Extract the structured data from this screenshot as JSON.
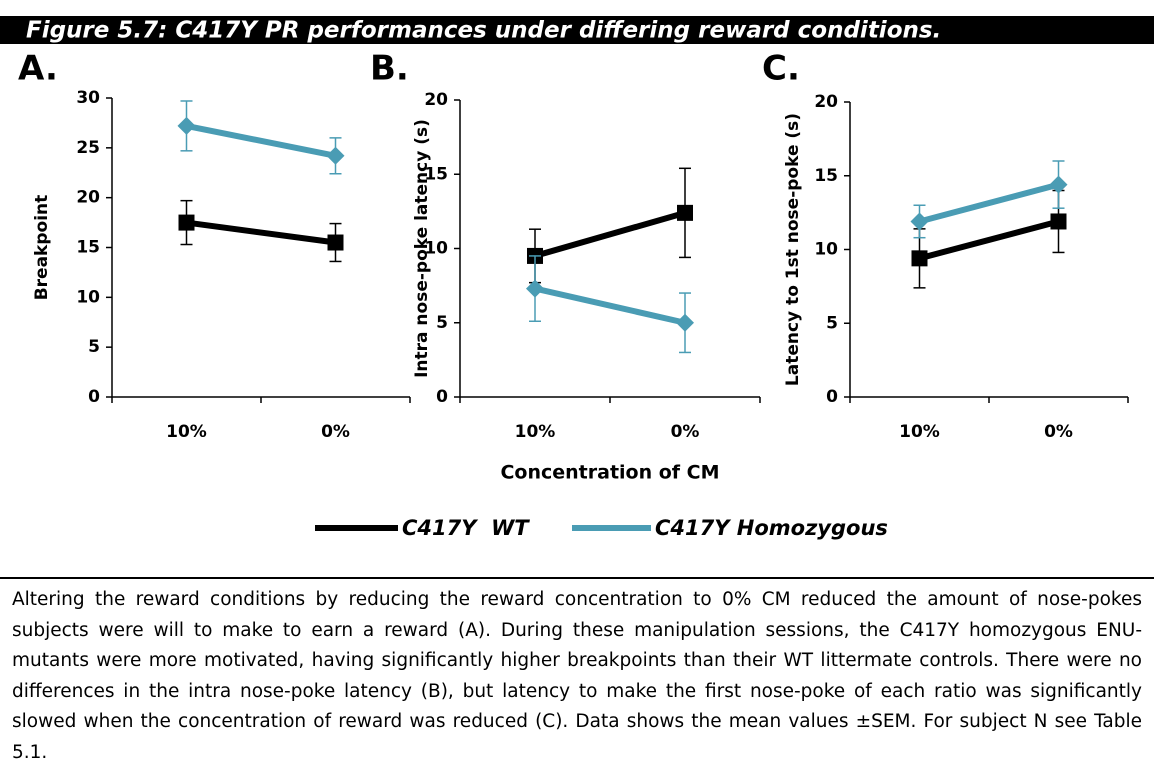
{
  "figure_title": "Figure 5.7: C417Y PR performances under differing reward conditions.",
  "caption": "Altering the reward conditions by reducing the reward concentration to 0% CM reduced the amount of nose-pokes subjects were will to make to earn a reward (A). During these manipulation sessions, the C417Y homozygous ENU-mutants were more motivated, having significantly higher breakpoints than their WT littermate controls. There were no differences in the intra nose-poke latency (B), but latency to make the first nose-poke of each ratio was significantly slowed when the concentration of reward was reduced (C). Data shows the mean values ±SEM. For subject N see Table 5.1.",
  "chart_data": [
    {
      "type": "line",
      "panel": "A.",
      "ylabel": "Breakpoint",
      "categories": [
        "10%",
        "0%"
      ],
      "ylim": [
        0,
        30
      ],
      "yticks": [
        0,
        5,
        10,
        15,
        20,
        25,
        30
      ],
      "series": [
        {
          "name": "C417Y  WT",
          "color": "#000000",
          "marker": "square",
          "values": [
            17.5,
            15.5
          ],
          "errors": [
            2.2,
            1.9
          ]
        },
        {
          "name": "C417Y Homozygous",
          "color": "#4a9cb4",
          "marker": "diamond",
          "values": [
            27.2,
            24.2
          ],
          "errors": [
            2.5,
            1.8
          ]
        }
      ]
    },
    {
      "type": "line",
      "panel": "B.",
      "ylabel": "Intra nose-poke latency (s)",
      "xlabel": "Concentration of CM",
      "categories": [
        "10%",
        "0%"
      ],
      "ylim": [
        0,
        20
      ],
      "yticks": [
        0,
        5,
        10,
        15,
        20
      ],
      "series": [
        {
          "name": "C417Y  WT",
          "color": "#000000",
          "marker": "square",
          "values": [
            9.5,
            12.4
          ],
          "errors": [
            1.8,
            3.0
          ]
        },
        {
          "name": "C417Y Homozygous",
          "color": "#4a9cb4",
          "marker": "diamond",
          "values": [
            7.3,
            5.0
          ],
          "errors": [
            2.2,
            2.0
          ]
        }
      ]
    },
    {
      "type": "line",
      "panel": "C.",
      "ylabel": "Latency to 1st nose-poke (s)",
      "categories": [
        "10%",
        "0%"
      ],
      "ylim": [
        0,
        20
      ],
      "yticks": [
        0,
        5,
        10,
        15,
        20
      ],
      "series": [
        {
          "name": "C417Y  WT",
          "color": "#000000",
          "marker": "square",
          "values": [
            9.4,
            11.9
          ],
          "errors": [
            2.0,
            2.1
          ]
        },
        {
          "name": "C417Y Homozygous",
          "color": "#4a9cb4",
          "marker": "diamond",
          "values": [
            11.9,
            14.4
          ],
          "errors": [
            1.1,
            1.6
          ]
        }
      ]
    }
  ]
}
